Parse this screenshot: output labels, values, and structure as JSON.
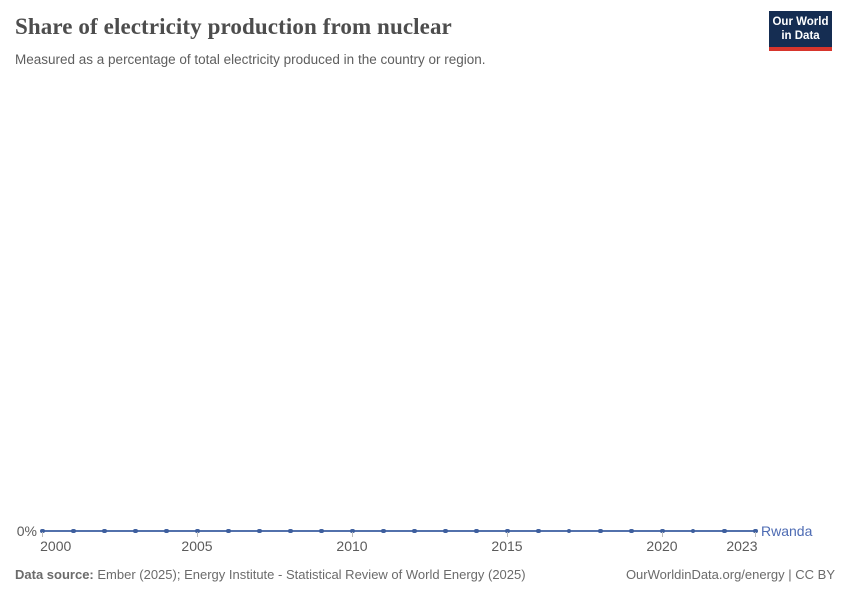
{
  "header": {
    "title": "Share of electricity production from nuclear",
    "subtitle": "Measured as a percentage of total electricity produced in the country or region."
  },
  "logo": {
    "line1": "Our World",
    "line2": "in Data"
  },
  "chart_data": {
    "type": "line",
    "title": "Share of electricity production from nuclear",
    "subtitle": "Measured as a percentage of total electricity produced in the country or region.",
    "x": [
      2000,
      2001,
      2002,
      2003,
      2004,
      2005,
      2006,
      2007,
      2008,
      2009,
      2010,
      2011,
      2012,
      2013,
      2014,
      2015,
      2016,
      2017,
      2018,
      2019,
      2020,
      2021,
      2022,
      2023
    ],
    "series": [
      {
        "name": "Rwanda",
        "values": [
          0,
          0,
          0,
          0,
          0,
          0,
          0,
          0,
          0,
          0,
          0,
          0,
          0,
          0,
          0,
          0,
          0,
          0,
          0,
          0,
          0,
          0,
          0,
          0
        ]
      }
    ],
    "unit": "%",
    "x_ticks": [
      2000,
      2005,
      2010,
      2015,
      2020,
      2023
    ],
    "y_ticks": [
      "0%"
    ],
    "xlabel": "",
    "ylabel": "",
    "grid": false,
    "legend_position": "end-of-line",
    "line_color": "#5271ac",
    "marker_color": "#3e5f9e",
    "entity_label_color": "#4d6bb3"
  },
  "footer": {
    "source_label": "Data source:",
    "source_text": " Ember (2025); Energy Institute - Statistical Review of World Energy (2025)",
    "right_text": "OurWorldinData.org/energy | CC BY"
  },
  "colors": {
    "title": "#4d4d4d",
    "text_gray": "#5b5b5b",
    "logo_navy": "#152d52",
    "logo_red": "#d7352c"
  }
}
